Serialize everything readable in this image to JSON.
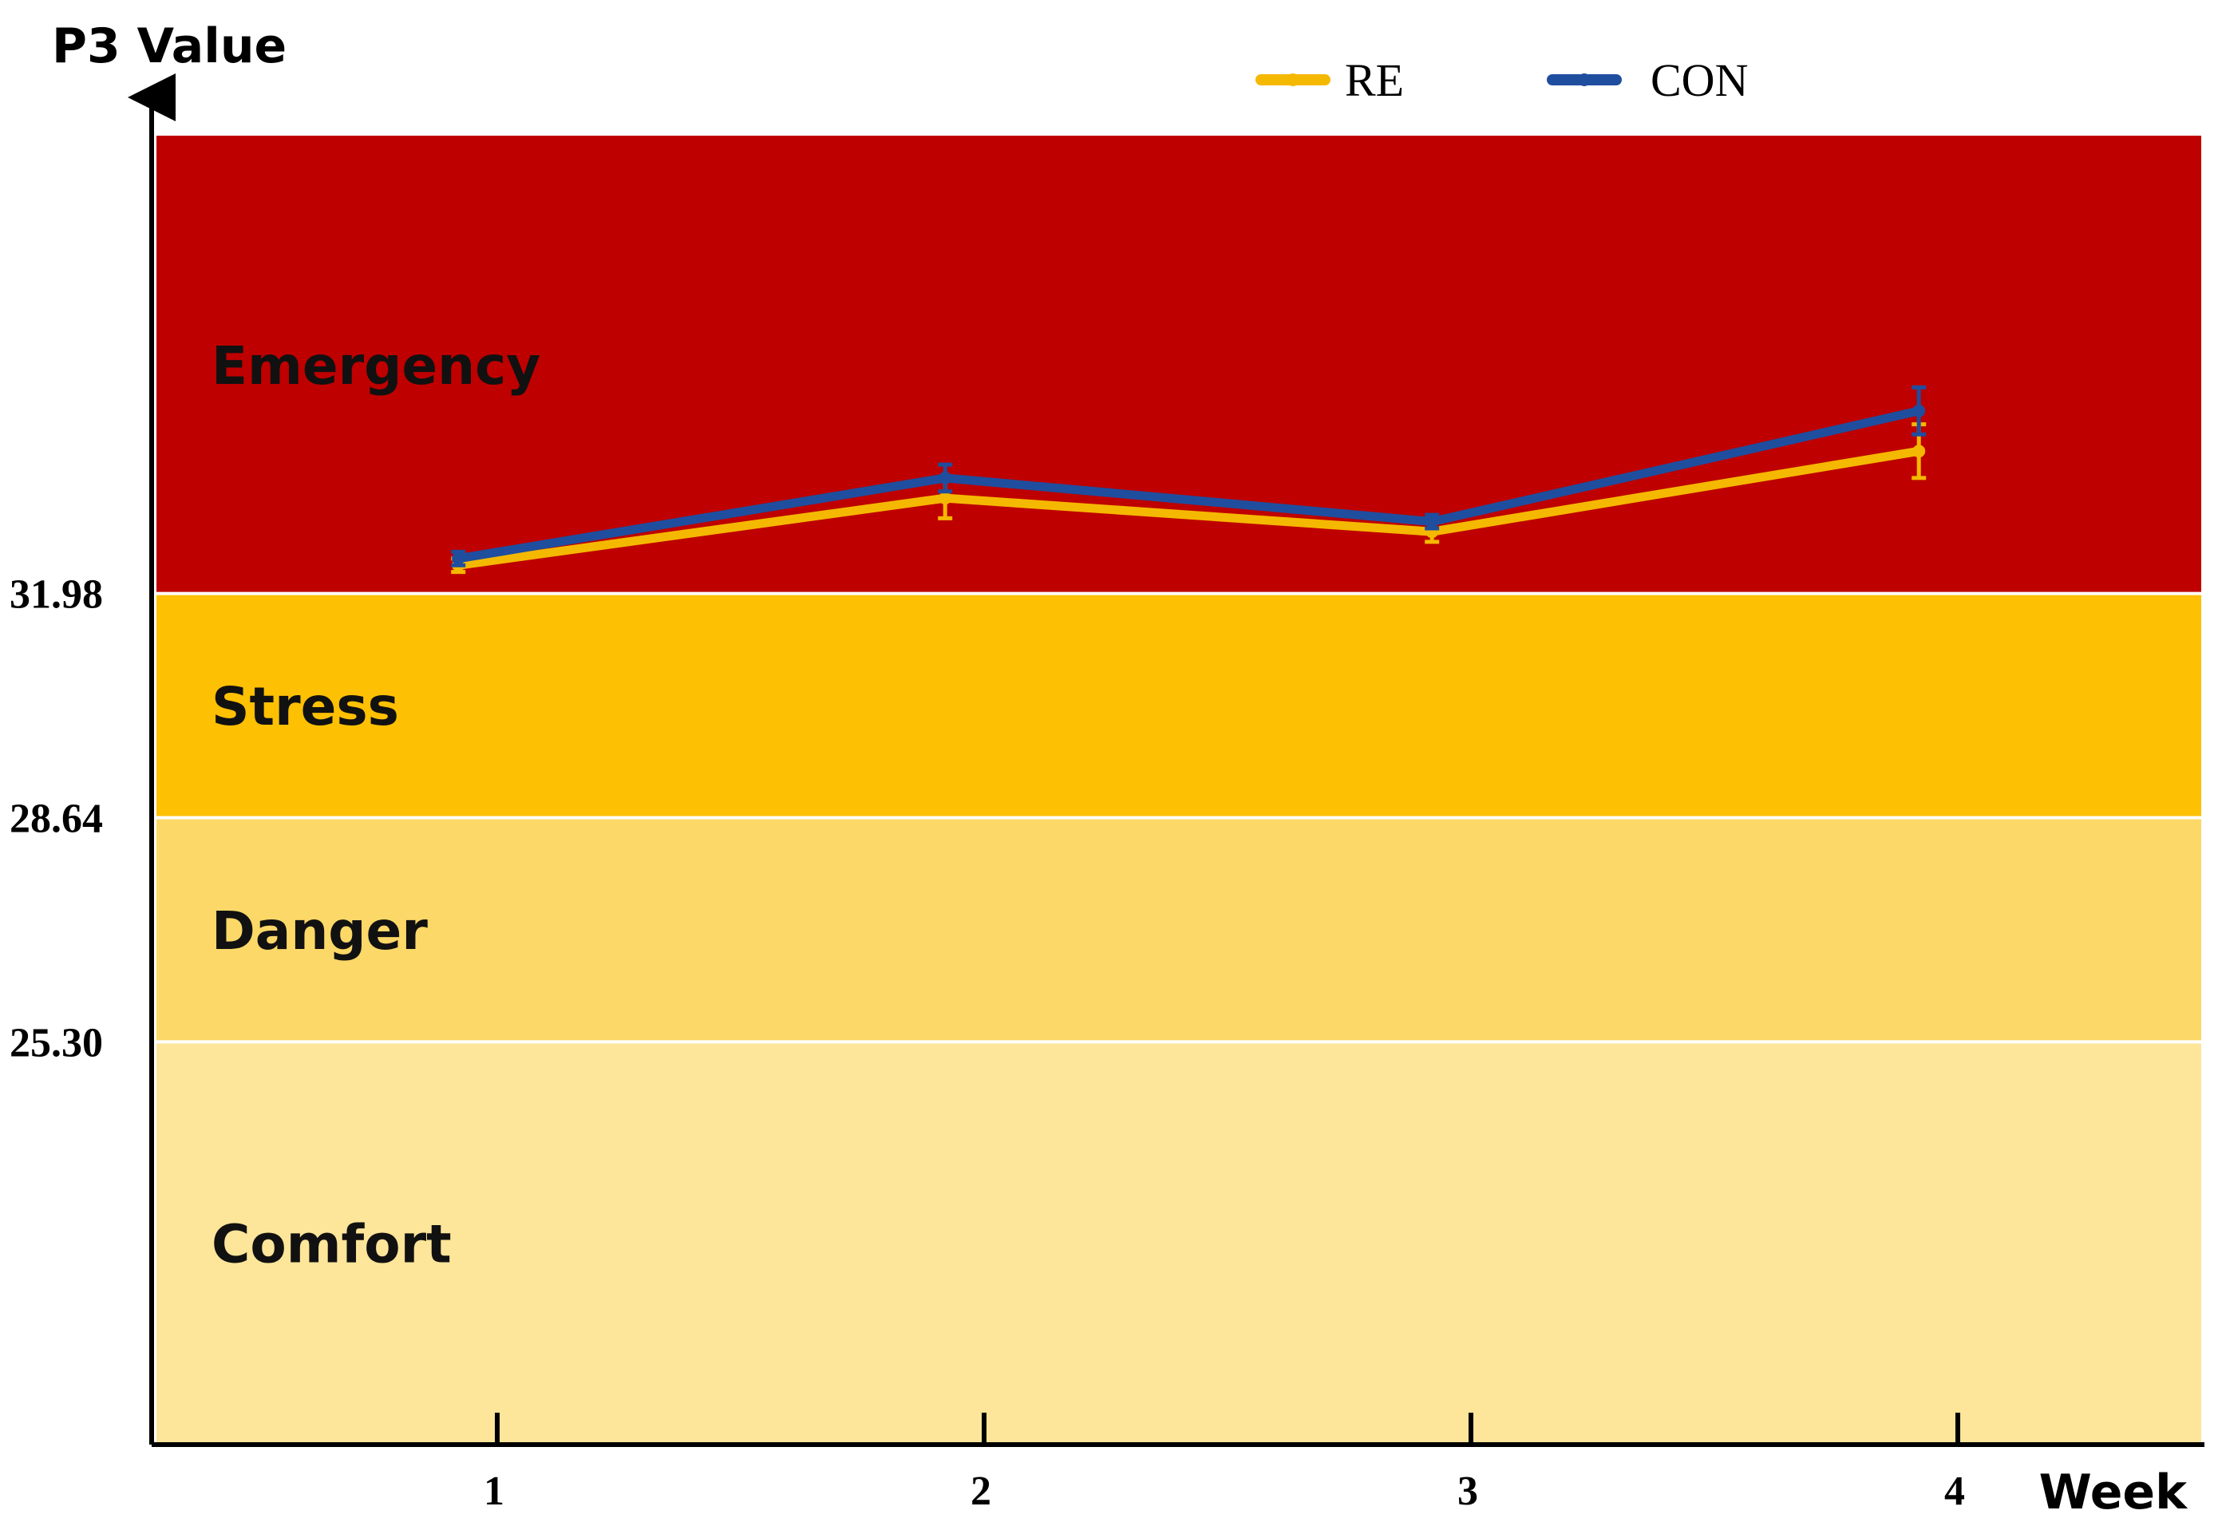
{
  "chart_data": {
    "type": "line",
    "ylabel": "P3 Value",
    "xlabel": "Week",
    "x": [
      1,
      2,
      3,
      4
    ],
    "x_tick_labels": [
      "1",
      "2",
      "3",
      "4"
    ],
    "y_tick_labels": [
      "31.98",
      "28.64",
      "25.30"
    ],
    "thresholds": [
      31.98,
      28.64,
      25.3
    ],
    "zones": [
      {
        "name": "Emergency",
        "from": 31.98,
        "to": 38.8,
        "color": "#BE0000"
      },
      {
        "name": "Stress",
        "from": 28.64,
        "to": 31.98,
        "color": "#FDC002"
      },
      {
        "name": "Danger",
        "from": 25.3,
        "to": 28.64,
        "color": "#FCD868"
      },
      {
        "name": "Comfort",
        "from": 19.3,
        "to": 25.3,
        "color": "#FDE59A"
      }
    ],
    "ylim": [
      19.3,
      38.8
    ],
    "xlim": [
      0.3,
      4.5
    ],
    "series": [
      {
        "name": "RE",
        "color": "#F5B800",
        "values": [
          32.4,
          33.4,
          32.9,
          34.1
        ],
        "errors": [
          0.1,
          0.3,
          0.15,
          0.4
        ],
        "x_offset": -0.08
      },
      {
        "name": "CON",
        "color": "#1F4E9F",
        "values": [
          32.5,
          33.7,
          33.05,
          34.7
        ],
        "errors": [
          0.1,
          0.2,
          0.1,
          0.35
        ],
        "x_offset": -0.08
      }
    ],
    "legend_position": "top",
    "grid": false
  }
}
